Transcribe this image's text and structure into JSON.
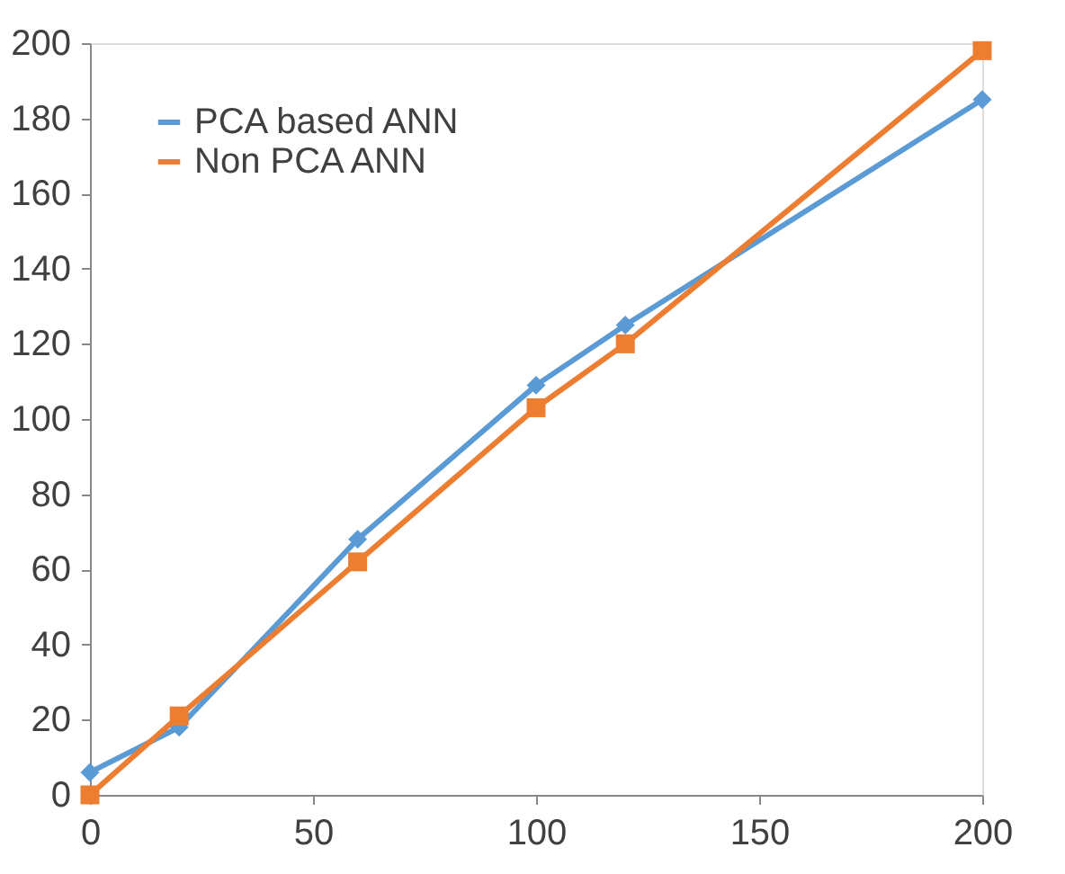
{
  "chart_data": {
    "type": "line",
    "x": [
      0,
      20,
      60,
      100,
      120,
      200
    ],
    "series": [
      {
        "name": "PCA based ANN",
        "color": "#5b9bd5",
        "marker": "diamond",
        "values": [
          6,
          18,
          68,
          109,
          125,
          185
        ]
      },
      {
        "name": "Non PCA ANN",
        "color": "#ed7d31",
        "marker": "square",
        "values": [
          0,
          21,
          62,
          103,
          120,
          198
        ]
      }
    ],
    "xlim": [
      0,
      200
    ],
    "xticks": [
      0,
      50,
      100,
      150,
      200
    ],
    "ylim": [
      0,
      200
    ],
    "yticks": [
      0,
      20,
      40,
      60,
      80,
      100,
      120,
      140,
      160,
      180,
      200
    ],
    "grid": false,
    "legend": "top left",
    "line_style": "solid"
  }
}
